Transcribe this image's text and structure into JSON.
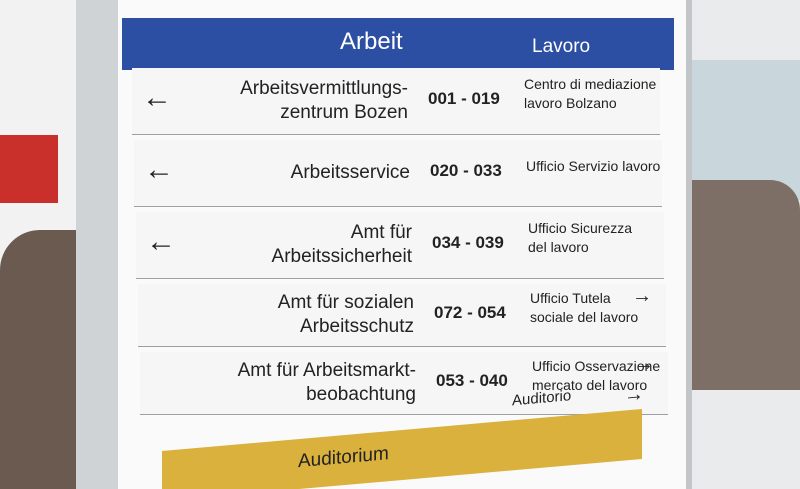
{
  "header": {
    "german": "Arbeit",
    "italian": "Lavoro"
  },
  "rows": [
    {
      "german": [
        "Arbeitsvermittlungs-",
        "zentrum Bozen"
      ],
      "range": "001 - 019",
      "italian": [
        "Centro di mediazione",
        "lavoro Bolzano"
      ]
    },
    {
      "german": [
        "Arbeitsservice"
      ],
      "range": "020 - 033",
      "italian": [
        "Ufficio Servizio lavoro"
      ]
    },
    {
      "german": [
        "Amt für",
        "Arbeitssicherheit"
      ],
      "range": "034 - 039",
      "italian": [
        "Ufficio Sicurezza",
        "del lavoro"
      ]
    },
    {
      "german": [
        "Amt für sozialen",
        "Arbeitsschutz"
      ],
      "range": "072 - 054",
      "italian": [
        "Ufficio Tutela",
        "sociale del lavoro"
      ]
    },
    {
      "german": [
        "Amt für Arbeitsmarkt-",
        "beobachtung"
      ],
      "range": "053 - 040",
      "italian": [
        "Ufficio Osservazione",
        "mercato del lavoro"
      ]
    }
  ],
  "footer": {
    "german": "Auditorium",
    "italian": "Auditorio"
  }
}
